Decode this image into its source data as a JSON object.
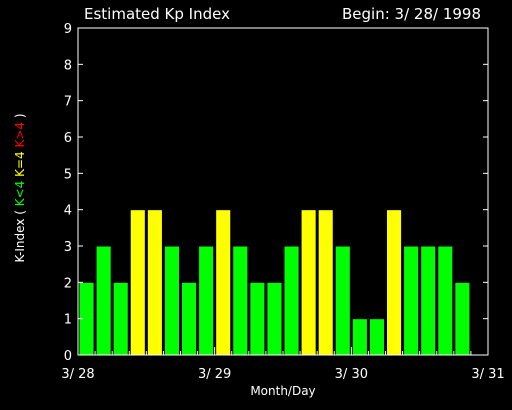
{
  "chart_data": {
    "type": "bar",
    "title": "Estimated Kp Index",
    "begin_label": "Begin: 3/ 28/ 1998",
    "xlabel": "Month/Day",
    "ylabel": {
      "prefix": "K-Index (",
      "legend": [
        {
          "text": "K<4",
          "color": "#00ff00"
        },
        {
          "text": "K=4",
          "color": "#ffff00"
        },
        {
          "text": "K>4",
          "color": "#ff0000"
        }
      ],
      "suffix": ")"
    },
    "ylim": [
      0,
      9
    ],
    "yticks": [
      0,
      1,
      2,
      3,
      4,
      5,
      6,
      7,
      8,
      9
    ],
    "xlim": [
      0,
      24
    ],
    "xticks": [
      {
        "pos": 0,
        "label": "3/ 28"
      },
      {
        "pos": 8,
        "label": "3/ 29"
      },
      {
        "pos": 16,
        "label": "3/ 30"
      },
      {
        "pos": 24,
        "label": "3/ 31"
      }
    ],
    "values": [
      2,
      3,
      2,
      4,
      4,
      3,
      2,
      3,
      4,
      3,
      2,
      2,
      3,
      4,
      4,
      3,
      1,
      1,
      4,
      3,
      3,
      3,
      2
    ],
    "colors": {
      "low": "#00ff00",
      "equal": "#ffff00",
      "high": "#ff0000"
    }
  }
}
